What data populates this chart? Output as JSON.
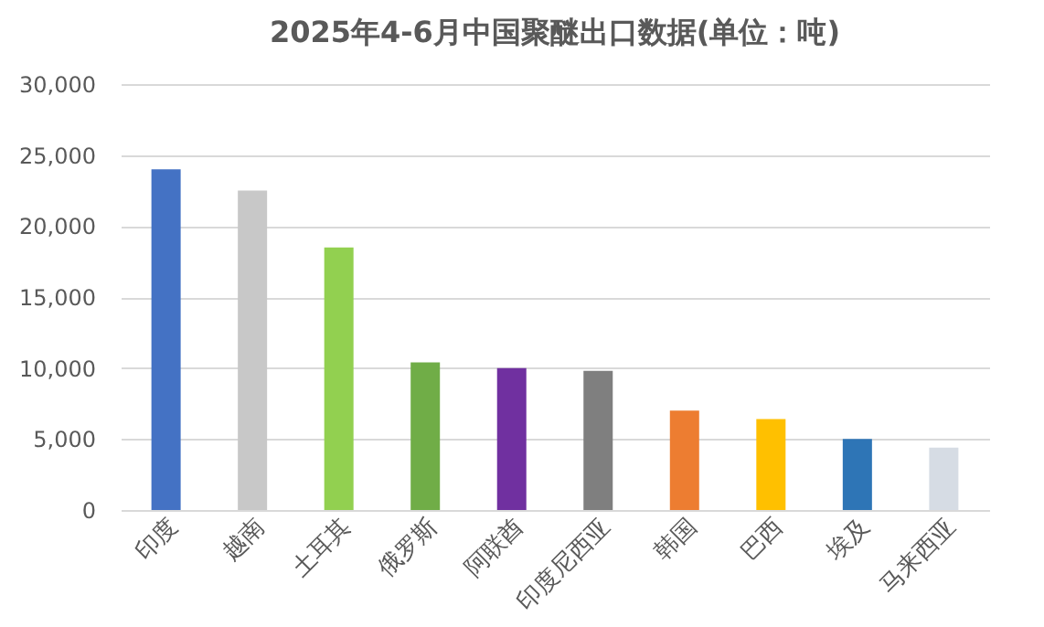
{
  "chart_data": {
    "type": "bar",
    "title": "2025年4-6月中国聚醚出口数据(单位：吨)",
    "categories": [
      "印度",
      "越南",
      "土耳其",
      "俄罗斯",
      "阿联酋",
      "印度尼西亚",
      "韩国",
      "巴西",
      "埃及",
      "马来西亚"
    ],
    "values": [
      24000,
      22500,
      18500,
      10400,
      10000,
      9800,
      7000,
      6400,
      5000,
      4400
    ],
    "colors": [
      "#4472c4",
      "#c8c8c8",
      "#92d050",
      "#70ad47",
      "#7030a0",
      "#7f7f7f",
      "#ed7d31",
      "#ffc000",
      "#2e75b6",
      "#d6dce4"
    ],
    "ylim": [
      0,
      30000
    ],
    "yticks": [
      0,
      {
        "value": 5000,
        "label": "5,000"
      },
      {
        "value": 10000,
        "label": "10,000"
      },
      {
        "value": 15000,
        "label": "15,000"
      },
      {
        "value": 20000,
        "label": "20,000"
      },
      {
        "value": 25000,
        "label": "25,000"
      },
      {
        "value": 30000,
        "label": "30,000"
      }
    ],
    "grid": "y"
  }
}
